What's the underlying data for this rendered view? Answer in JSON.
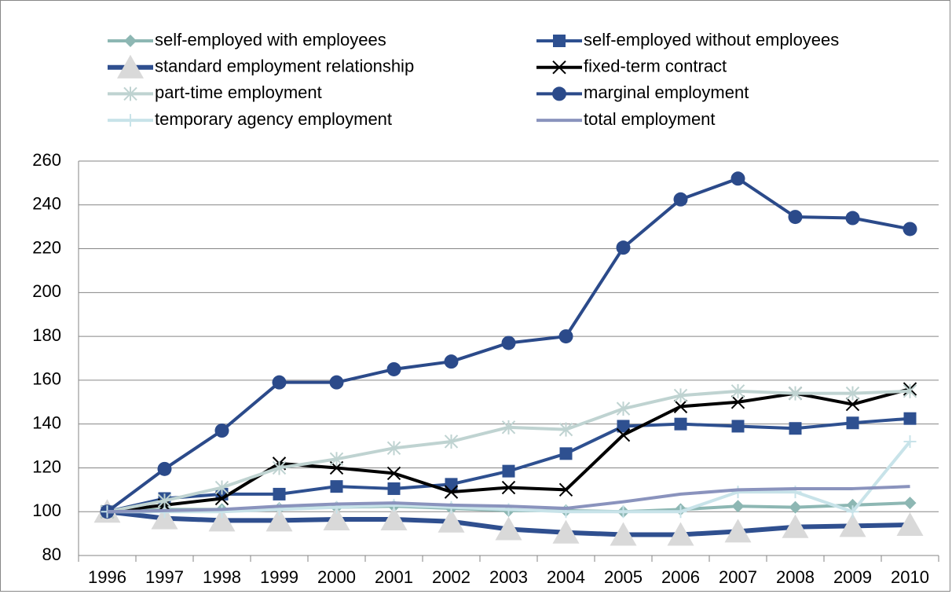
{
  "chart_data": {
    "type": "line",
    "categories": [
      "1996",
      "1997",
      "1998",
      "1999",
      "2000",
      "2001",
      "2002",
      "2003",
      "2004",
      "2005",
      "2006",
      "2007",
      "2008",
      "2009",
      "2010"
    ],
    "series": [
      {
        "name": "self-employed with employees",
        "color": "#8db7b3",
        "marker": "diamond",
        "values": [
          100,
          101,
          101,
          101.5,
          102,
          102.5,
          101.5,
          100.5,
          100.5,
          100,
          101,
          102.5,
          102,
          103,
          104
        ]
      },
      {
        "name": "self-employed without employees",
        "color": "#2e5090",
        "marker": "square",
        "values": [
          100,
          106,
          108,
          108,
          111.5,
          110.5,
          112.5,
          118.5,
          126.5,
          139,
          140,
          139,
          138,
          140.5,
          142.5
        ]
      },
      {
        "name": "standard employment relationship",
        "color": "#2f4f8f",
        "marker": "triangle",
        "marker_color": "#d9d9d9",
        "values": [
          100,
          97,
          96,
          96,
          96.5,
          96.5,
          95.5,
          92,
          90.5,
          89.5,
          89.5,
          91,
          93,
          93.5,
          94
        ]
      },
      {
        "name": "fixed-term contract",
        "color": "#000000",
        "marker": "x",
        "values": [
          100,
          103,
          106,
          122,
          120,
          117.5,
          109,
          111,
          110,
          135,
          148,
          150,
          154,
          149,
          156
        ]
      },
      {
        "name": "part-time employment",
        "color": "#bfd3d1",
        "marker": "asterisk",
        "values": [
          100,
          105,
          111,
          120,
          124,
          129,
          132,
          138.5,
          137.5,
          147,
          153,
          155,
          154,
          154,
          155
        ]
      },
      {
        "name": "marginal employment",
        "color": "#2b4a8a",
        "marker": "circle",
        "values": [
          100,
          119.5,
          137,
          159,
          159,
          165,
          168.5,
          177,
          180,
          220.5,
          242.5,
          252,
          234.5,
          234,
          229
        ]
      },
      {
        "name": "temporary agency employment",
        "color": "#c8e3e9",
        "marker": "plus",
        "values": [
          100,
          100,
          100,
          101,
          102,
          103,
          102,
          101,
          100,
          100,
          100,
          109,
          109,
          100,
          132
        ]
      },
      {
        "name": "total employment",
        "color": "#8a93bd",
        "marker": "none",
        "values": [
          100,
          100.5,
          101,
          102.5,
          103.5,
          104,
          103,
          102.5,
          101.5,
          104.5,
          108,
          110,
          110.5,
          110.5,
          111.5
        ]
      }
    ],
    "ylim": [
      80,
      260
    ],
    "yticks": [
      80,
      100,
      120,
      140,
      160,
      180,
      200,
      220,
      240,
      260
    ],
    "grid": true
  }
}
